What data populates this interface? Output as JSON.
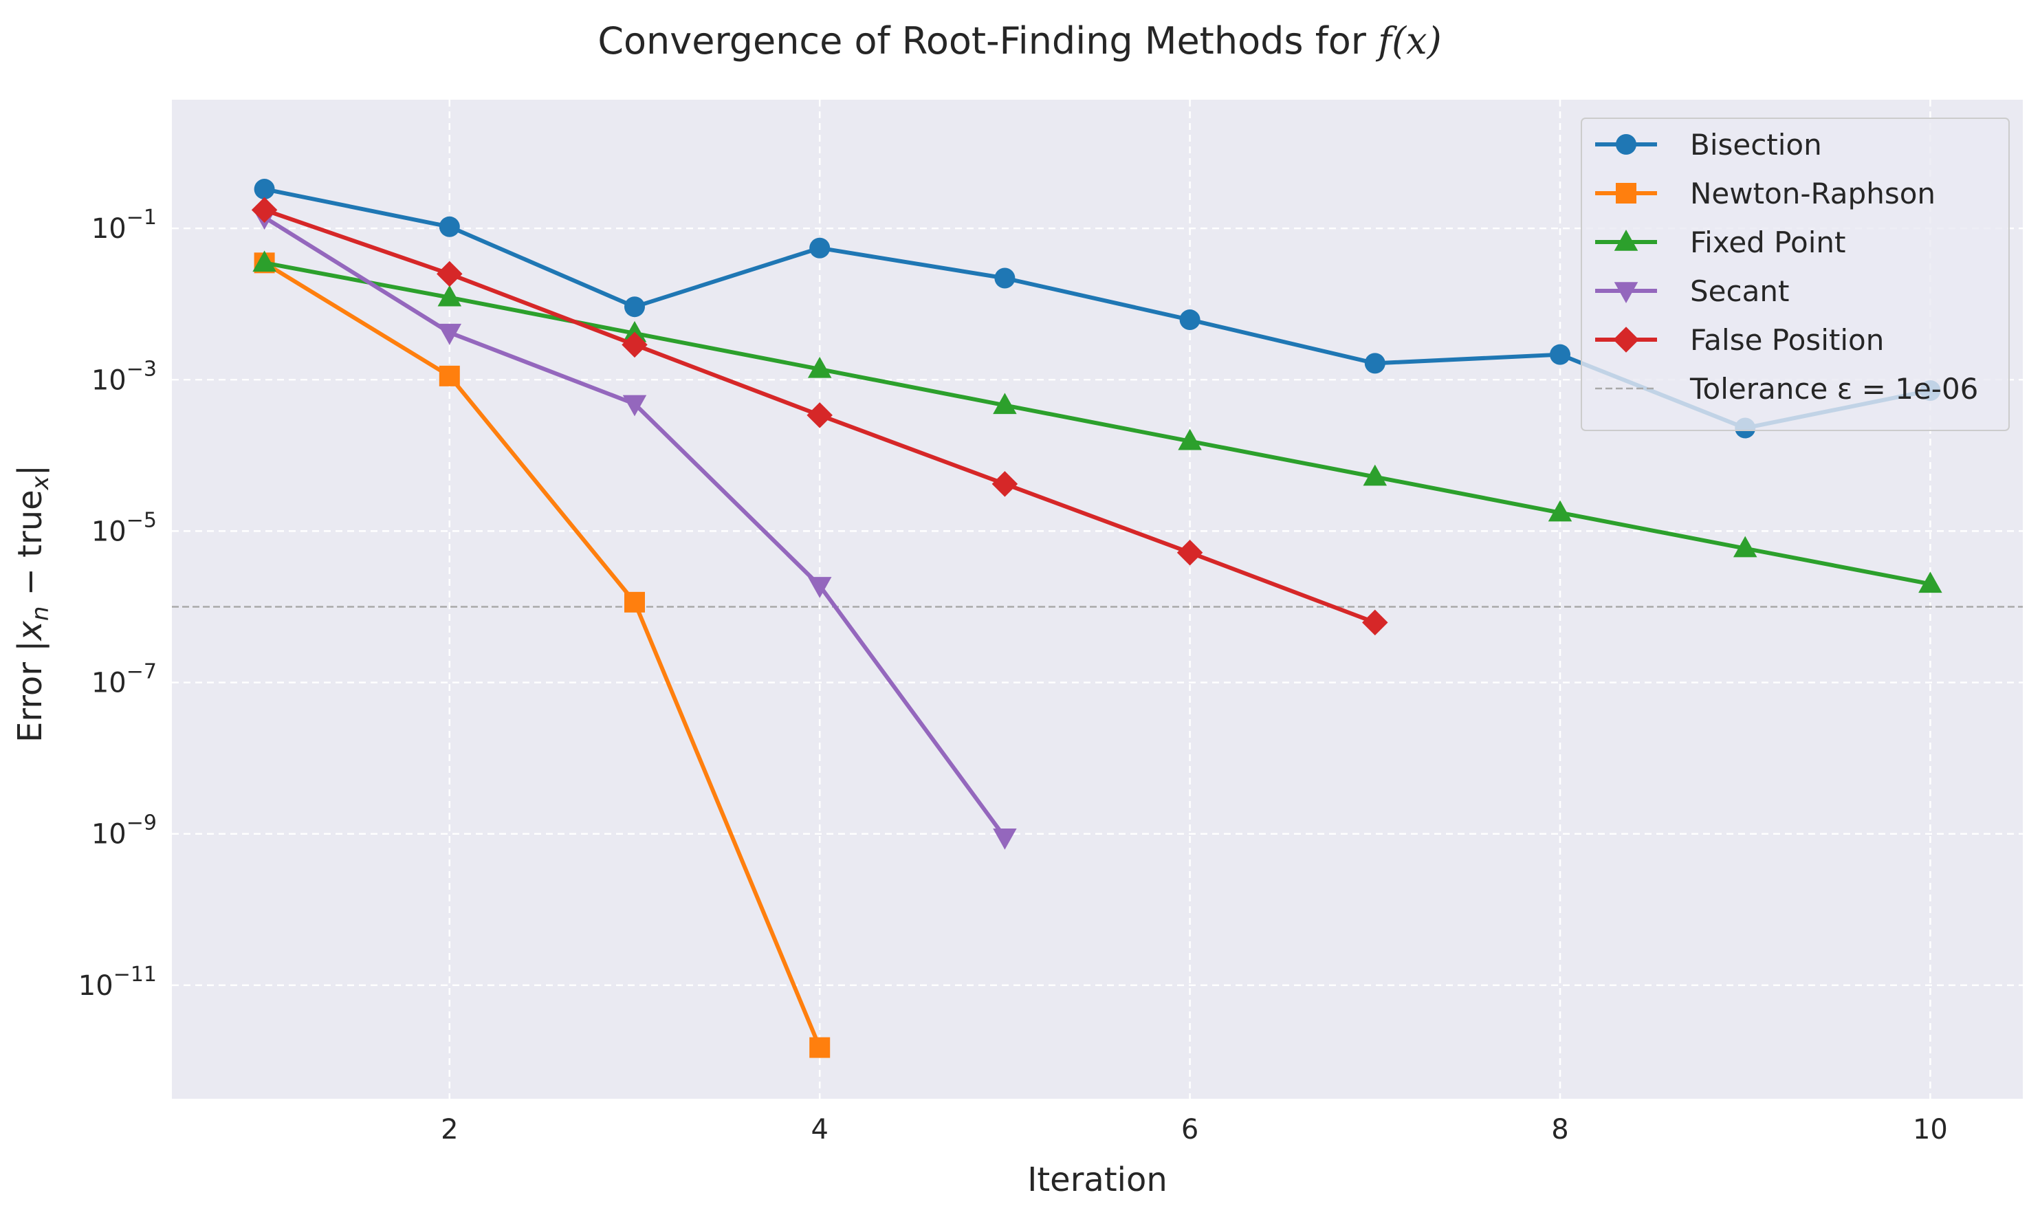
{
  "chart_data": {
    "type": "line",
    "title": "Convergence of Root-Finding Methods for ",
    "title_math": "f(x)",
    "xlabel": "Iteration",
    "ylabel_parts": {
      "prefix": "Error |",
      "x": "x",
      "n": "n",
      "minus": " − true",
      "sub": "x",
      "suffix": "|"
    },
    "x_scale": "linear",
    "y_scale": "log",
    "xlim": [
      0.5,
      10.5
    ],
    "ylim_exp": [
      -12.5,
      0.7
    ],
    "x_ticks": [
      2,
      4,
      6,
      8,
      10
    ],
    "y_tick_exponents": [
      -11,
      -9,
      -7,
      -5,
      -3,
      -1
    ],
    "grid": true,
    "grid_style": "dashed",
    "background": "#eaeaf2",
    "legend_position": "upper right",
    "series": [
      {
        "name": "Bisection",
        "color": "#1f77b4",
        "marker": "circle",
        "x": [
          1,
          2,
          3,
          4,
          5,
          6,
          7,
          8,
          9,
          10
        ],
        "y": [
          0.33,
          0.105,
          0.0092,
          0.055,
          0.022,
          0.0062,
          0.00165,
          0.00215,
          0.00023,
          0.00072
        ]
      },
      {
        "name": "Newton-Raphson",
        "color": "#ff7f0e",
        "marker": "square",
        "x": [
          1,
          2,
          3,
          4
        ],
        "y": [
          0.035,
          0.00112,
          1.15e-06,
          1.5e-12
        ]
      },
      {
        "name": "Fixed Point",
        "color": "#2ca02c",
        "marker": "triangle-up",
        "x": [
          1,
          2,
          3,
          4,
          5,
          6,
          7,
          8,
          9,
          10
        ],
        "y": [
          0.035,
          0.0122,
          0.0041,
          0.00138,
          0.00046,
          0.000154,
          5.2e-05,
          1.75e-05,
          5.9e-06,
          2e-06
        ]
      },
      {
        "name": "Secant",
        "color": "#9467bd",
        "marker": "triangle-down",
        "x": [
          1,
          2,
          3,
          4,
          5
        ],
        "y": [
          0.14,
          0.0042,
          0.00048,
          1.9e-06,
          9e-10
        ]
      },
      {
        "name": "False Position",
        "color": "#d62728",
        "marker": "diamond",
        "x": [
          1,
          2,
          3,
          4,
          5,
          6,
          7
        ],
        "y": [
          0.175,
          0.025,
          0.0029,
          0.00034,
          4.2e-05,
          5.2e-06,
          6.2e-07
        ]
      }
    ],
    "reference_lines": [
      {
        "name": "Tolerance ε = 1e-06",
        "y": 1e-06,
        "color": "#a9a9a9",
        "style": "dashed"
      }
    ]
  }
}
